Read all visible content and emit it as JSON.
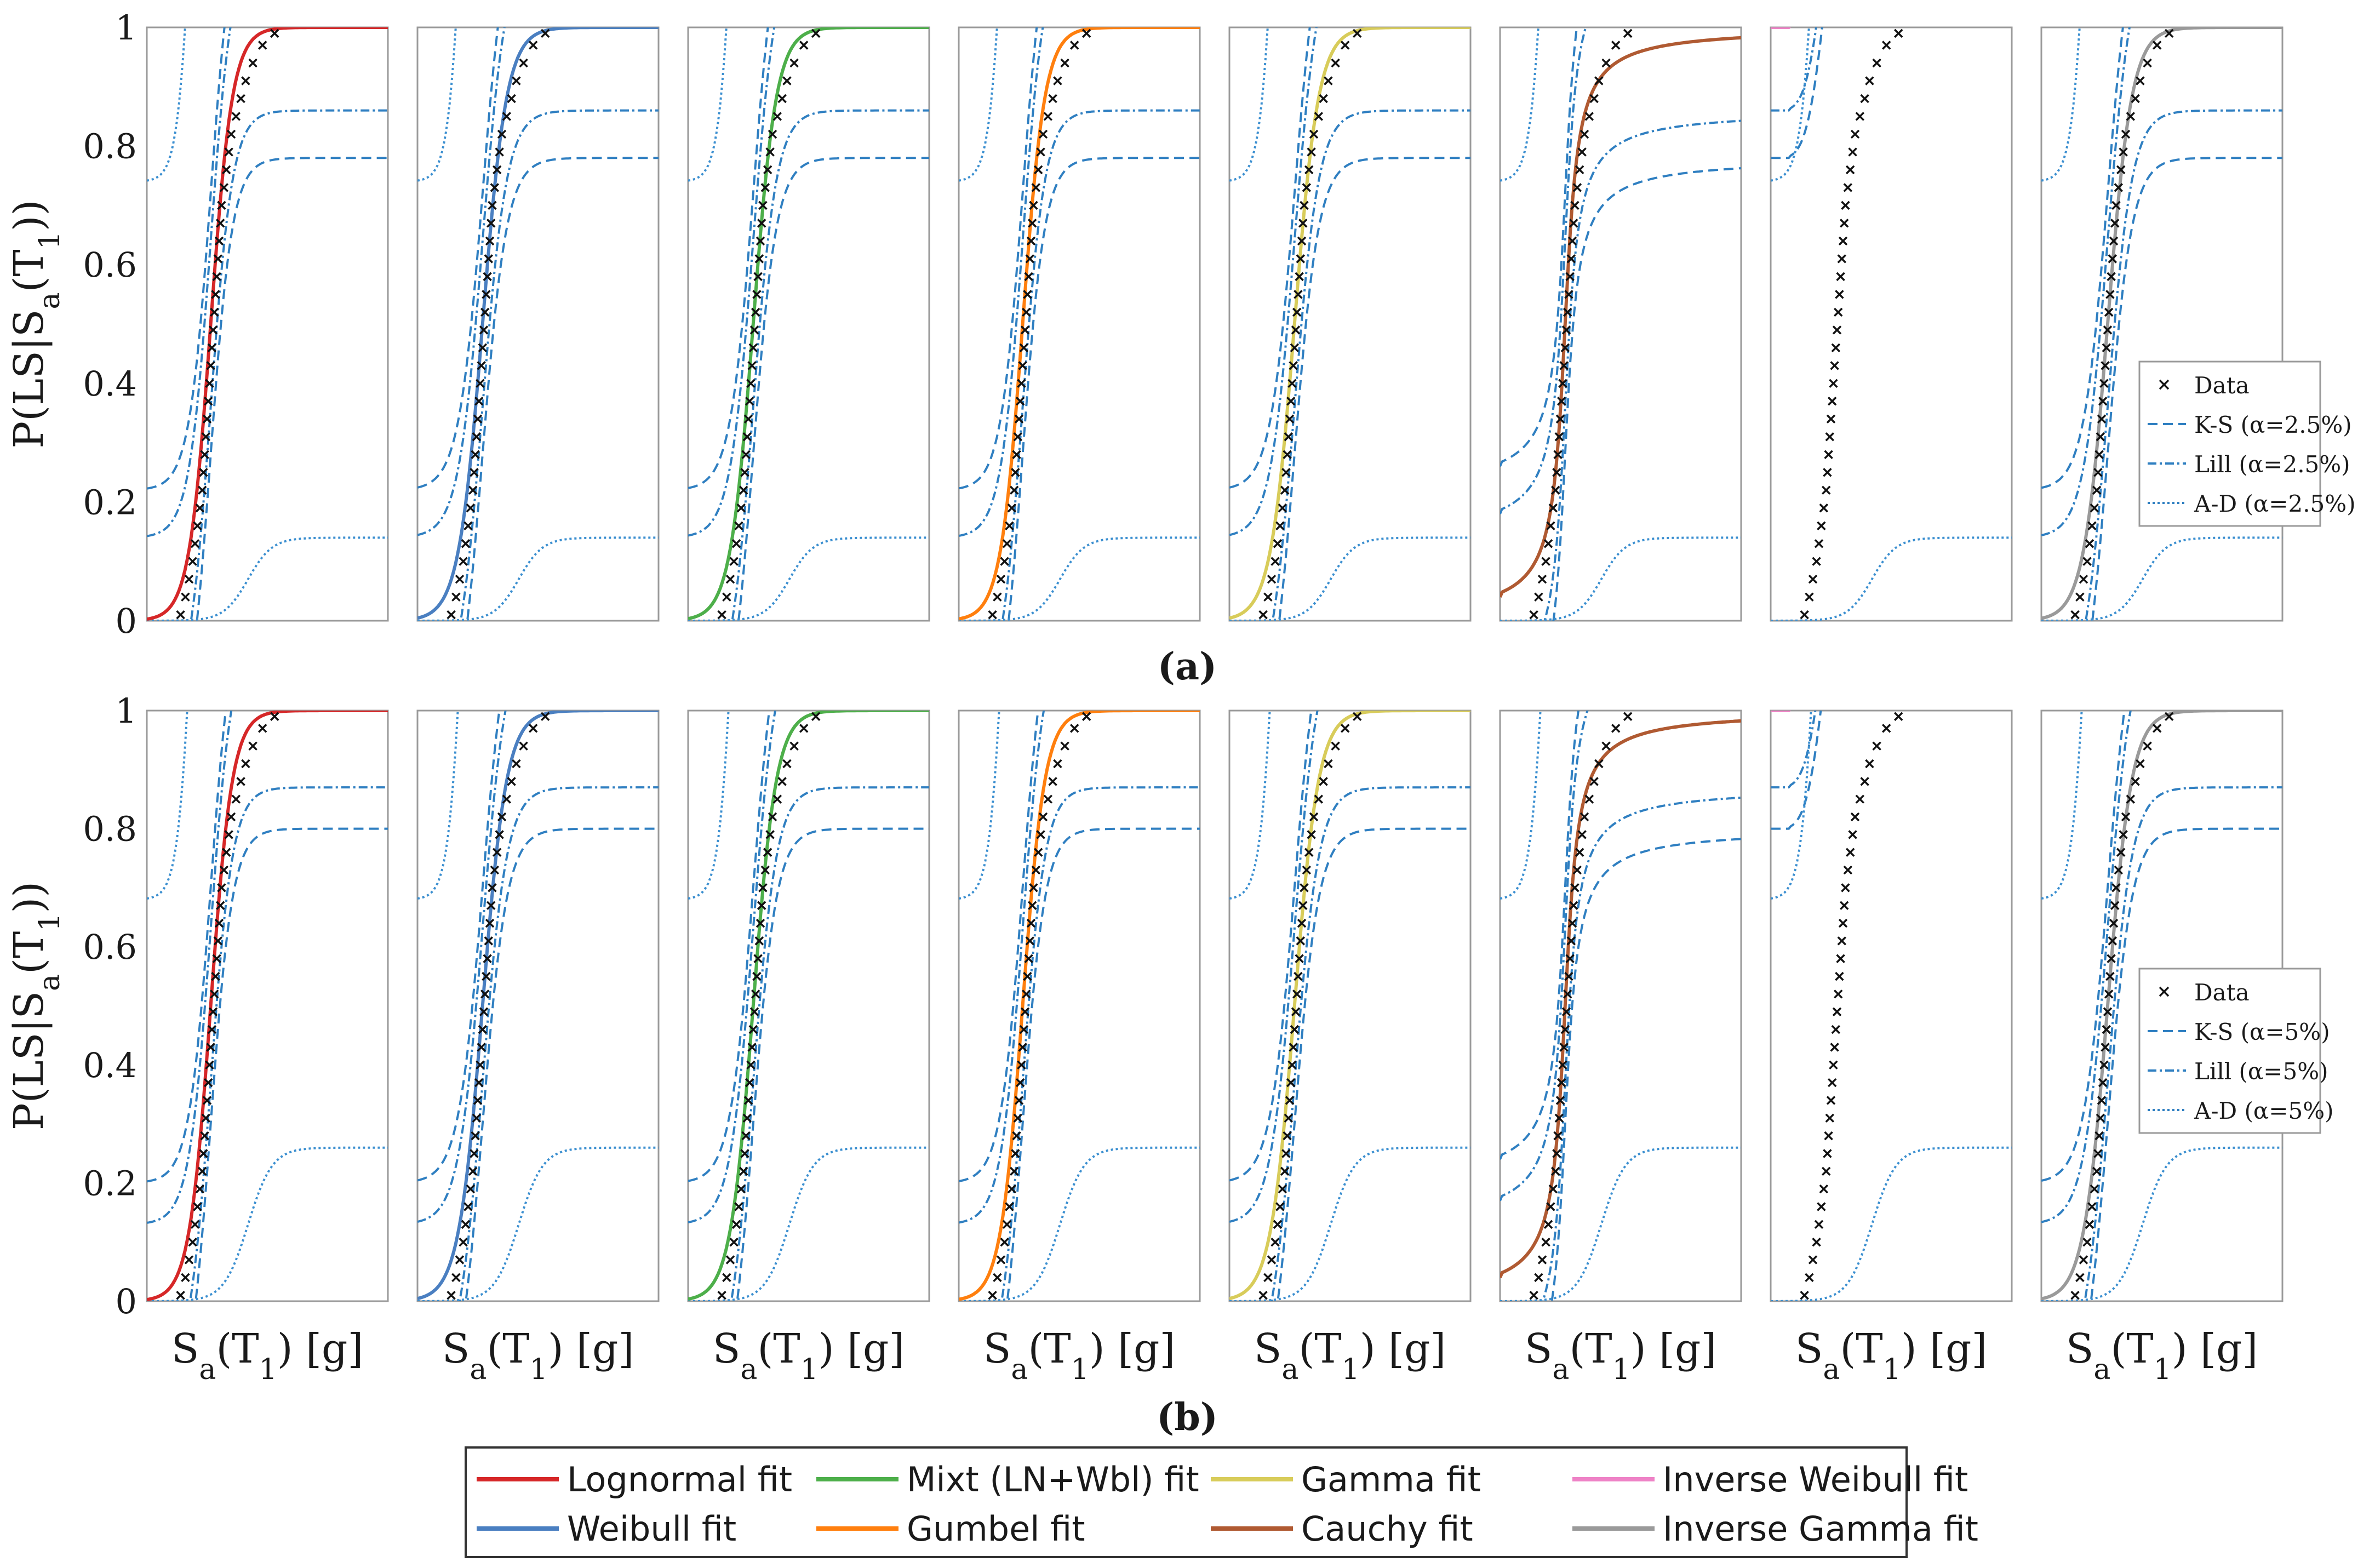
{
  "chart_data": {
    "type": "line",
    "xlabel": "S_a(T_1) [g]",
    "ylabel": "P(LS|S_a(T_1))",
    "ylim": [
      0,
      1
    ],
    "y_ticks": [
      "0",
      "0.2",
      "0.4",
      "0.6",
      "0.8",
      "1"
    ],
    "x_range": [
      0,
      1
    ],
    "panel_groups": [
      {
        "label": "(a)",
        "alpha": "2.5%",
        "legend": [
          "Data",
          "K-S (α=2.5%)",
          "Lill (α=2.5%)",
          "A-D (α=2.5%)"
        ],
        "ks_offset": 0.22,
        "lill_offset": 0.14,
        "ad_offset": 0.14
      },
      {
        "label": "(b)",
        "alpha": "5%",
        "legend": [
          "Data",
          "K-S (α=5%)",
          "Lill (α=5%)",
          "A-D (α=5%)"
        ],
        "ks_offset": 0.2,
        "lill_offset": 0.13,
        "ad_offset": 0.26
      }
    ],
    "empirical_data": {
      "x": [
        0.14,
        0.16,
        0.175,
        0.19,
        0.2,
        0.21,
        0.22,
        0.23,
        0.235,
        0.24,
        0.245,
        0.25,
        0.255,
        0.26,
        0.265,
        0.27,
        0.275,
        0.28,
        0.285,
        0.29,
        0.295,
        0.3,
        0.305,
        0.31,
        0.32,
        0.33,
        0.34,
        0.35,
        0.37,
        0.39,
        0.41,
        0.44,
        0.48,
        0.53
      ],
      "y": [
        0.01,
        0.04,
        0.07,
        0.1,
        0.13,
        0.16,
        0.19,
        0.22,
        0.25,
        0.28,
        0.31,
        0.34,
        0.37,
        0.4,
        0.43,
        0.46,
        0.49,
        0.52,
        0.55,
        0.58,
        0.61,
        0.64,
        0.67,
        0.7,
        0.73,
        0.76,
        0.79,
        0.82,
        0.85,
        0.88,
        0.91,
        0.94,
        0.97,
        0.99
      ]
    },
    "series": [
      {
        "name": "Lognormal fit",
        "color": "#d62728"
      },
      {
        "name": "Weibull fit",
        "color": "#4a7fc1"
      },
      {
        "name": "Mixt (LN+Wbl) fit",
        "color": "#4daf4a"
      },
      {
        "name": "Gumbel fit",
        "color": "#ff7f0e"
      },
      {
        "name": "Gamma fit",
        "color": "#d8cc5a"
      },
      {
        "name": "Cauchy fit",
        "color": "#b05a32"
      },
      {
        "name": "Inverse Weibull fit",
        "color": "#ee82c6"
      },
      {
        "name": "Inverse Gamma fit",
        "color": "#9a9a9a"
      }
    ],
    "bound_color": "#2f7fc1"
  },
  "legend_bottom": {
    "row1": [
      "Lognormal fit",
      "Mixt (LN+Wbl) fit",
      "Gamma fit",
      "Inverse Weibull fit"
    ],
    "row2": [
      "Weibull fit",
      "Gumbel fit",
      "Cauchy fit",
      "Inverse Gamma fit"
    ]
  }
}
